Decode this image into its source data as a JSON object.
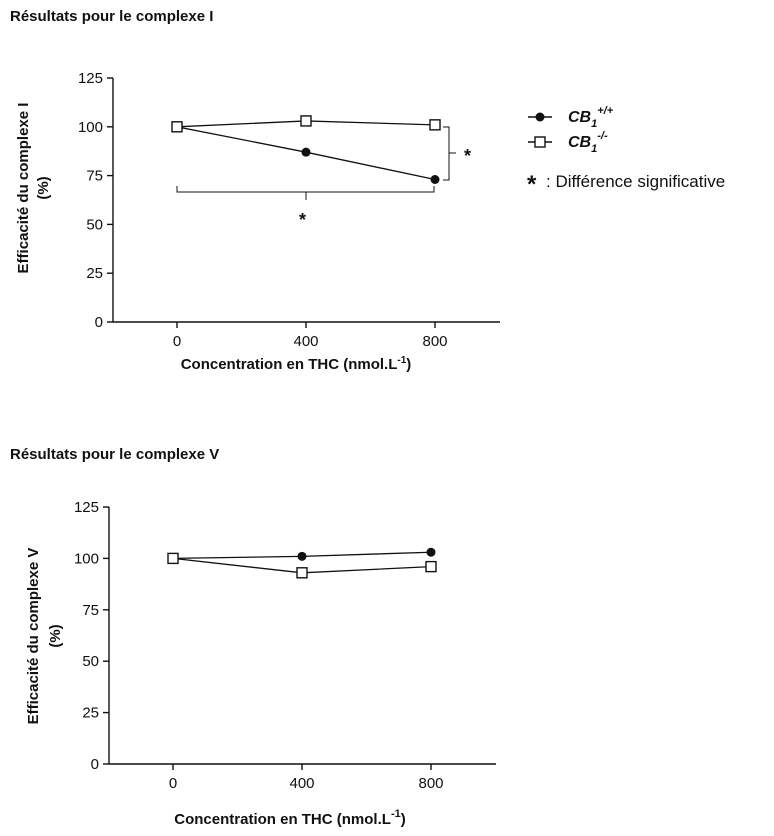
{
  "colors": {
    "ink": "#111111",
    "background": "#ffffff"
  },
  "chart_data": [
    {
      "type": "line",
      "title": "Résultats pour le complexe I",
      "xlabel": "Concentration en THC (nmol.L",
      "xlabel_sup": "-1",
      "xlabel_end": ")",
      "ylabel_line1": "Efficacité du complexe I",
      "ylabel_line2": "(%)",
      "x": [
        0,
        400,
        800
      ],
      "x_ticks": [
        "0",
        "400",
        "800"
      ],
      "y_ticks": [
        "0",
        "25",
        "50",
        "75",
        "100",
        "125"
      ],
      "ylim": [
        0,
        125
      ],
      "series": [
        {
          "name": "CB1+/+",
          "marker": "filled-circle",
          "values": [
            100,
            87,
            73
          ]
        },
        {
          "name": "CB1-/-",
          "marker": "open-square",
          "values": [
            100,
            103,
            101
          ]
        }
      ],
      "legend": {
        "placement": "right",
        "entries": [
          {
            "base": "CB",
            "sub": "1",
            "sup": "+/+",
            "marker": "filled-circle"
          },
          {
            "base": "CB",
            "sub": "1",
            "sup": "-/-",
            "marker": "open-square"
          }
        ]
      },
      "annotations": {
        "star": "*",
        "note": ": Différence significative"
      }
    },
    {
      "type": "line",
      "title": "Résultats pour le complexe V",
      "xlabel": "Concentration en THC (nmol.L",
      "xlabel_sup": "-1",
      "xlabel_end": ")",
      "ylabel_line1": "Efficacité du complexe V",
      "ylabel_line2": "(%)",
      "x": [
        0,
        400,
        800
      ],
      "x_ticks": [
        "0",
        "400",
        "800"
      ],
      "y_ticks": [
        "0",
        "25",
        "50",
        "75",
        "100",
        "125"
      ],
      "ylim": [
        0,
        125
      ],
      "series": [
        {
          "name": "CB1+/+",
          "marker": "filled-circle",
          "values": [
            100,
            101,
            103
          ]
        },
        {
          "name": "CB1-/-",
          "marker": "open-square",
          "values": [
            100,
            93,
            96
          ]
        }
      ]
    }
  ]
}
